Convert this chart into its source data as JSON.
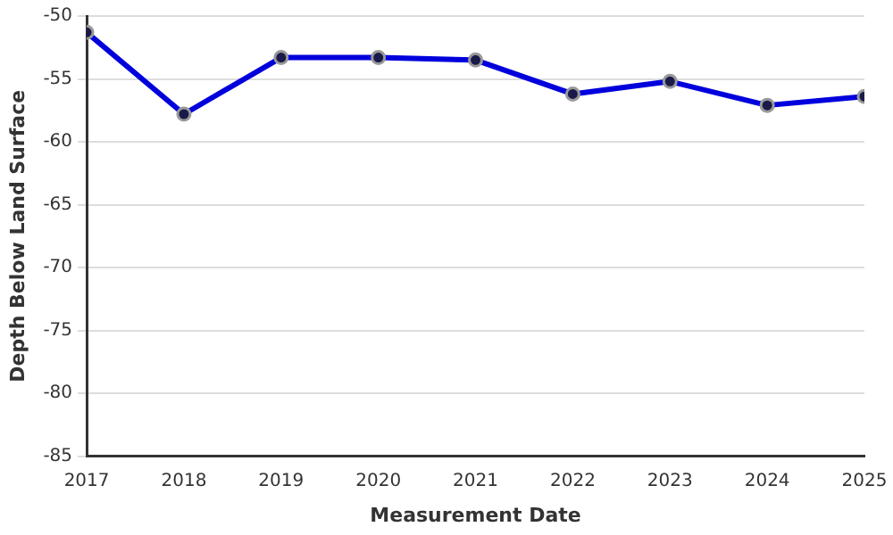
{
  "chart_data": {
    "type": "line",
    "xlabel": "Measurement Date",
    "ylabel": "Depth Below Land Surface",
    "x": [
      2017,
      2018,
      2019,
      2020,
      2021,
      2022,
      2023,
      2024,
      2025
    ],
    "series": [
      {
        "color": "#0000dd",
        "values": [
          -51.3,
          -57.8,
          -53.3,
          -53.3,
          -53.5,
          -56.2,
          -55.2,
          -57.1,
          -56.4
        ]
      }
    ],
    "xlim": [
      2017,
      2025
    ],
    "xticks": [
      2017,
      2018,
      2019,
      2020,
      2021,
      2022,
      2023,
      2024,
      2025
    ],
    "ylim": [
      -85,
      -50
    ],
    "yticks": [
      -85,
      -80,
      -75,
      -70,
      -65,
      -60,
      -55,
      -50
    ],
    "grid": "y",
    "marker": "circle",
    "line_style": "solid"
  }
}
